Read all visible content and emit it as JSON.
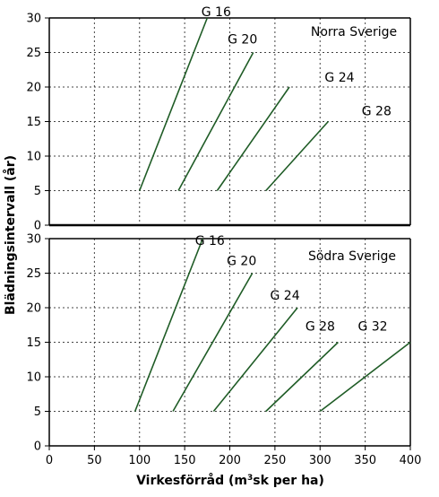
{
  "chart_data": {
    "type": "line",
    "xlabel": "Virkesförråd (m³sk per ha)",
    "ylabel": "Blädningsintervall (år)",
    "xlim": [
      0,
      400
    ],
    "xticks": [
      "0",
      "50",
      "100",
      "150",
      "200",
      "250",
      "300",
      "350",
      "400"
    ],
    "grid": true,
    "panels": [
      {
        "name": "Norra Sverige",
        "ylim": [
          0,
          30
        ],
        "yticks": [
          "0",
          "5",
          "10",
          "15",
          "20",
          "25",
          "30"
        ],
        "series": [
          {
            "name": "G 16",
            "x": [
              100,
              175
            ],
            "y": [
              5,
              30
            ]
          },
          {
            "name": "G 20",
            "x": [
              143,
              226
            ],
            "y": [
              5,
              25
            ]
          },
          {
            "name": "G 24",
            "x": [
              186,
              266
            ],
            "y": [
              5,
              20
            ]
          },
          {
            "name": "G 28",
            "x": [
              240,
              309
            ],
            "y": [
              5,
              15
            ]
          }
        ]
      },
      {
        "name": "Södra Sverige",
        "ylim": [
          0,
          30
        ],
        "yticks": [
          "0",
          "5",
          "10",
          "15",
          "20",
          "25",
          "30"
        ],
        "series": [
          {
            "name": "G 16",
            "x": [
              95,
              170
            ],
            "y": [
              5,
              30
            ]
          },
          {
            "name": "G 20",
            "x": [
              137,
              225
            ],
            "y": [
              5,
              25
            ]
          },
          {
            "name": "G 24",
            "x": [
              182,
              275
            ],
            "y": [
              5,
              20
            ]
          },
          {
            "name": "G 28",
            "x": [
              240,
              320
            ],
            "y": [
              5,
              15
            ]
          },
          {
            "name": "G 32",
            "x": [
              300,
              400
            ],
            "y": [
              5,
              15
            ]
          }
        ]
      }
    ]
  }
}
